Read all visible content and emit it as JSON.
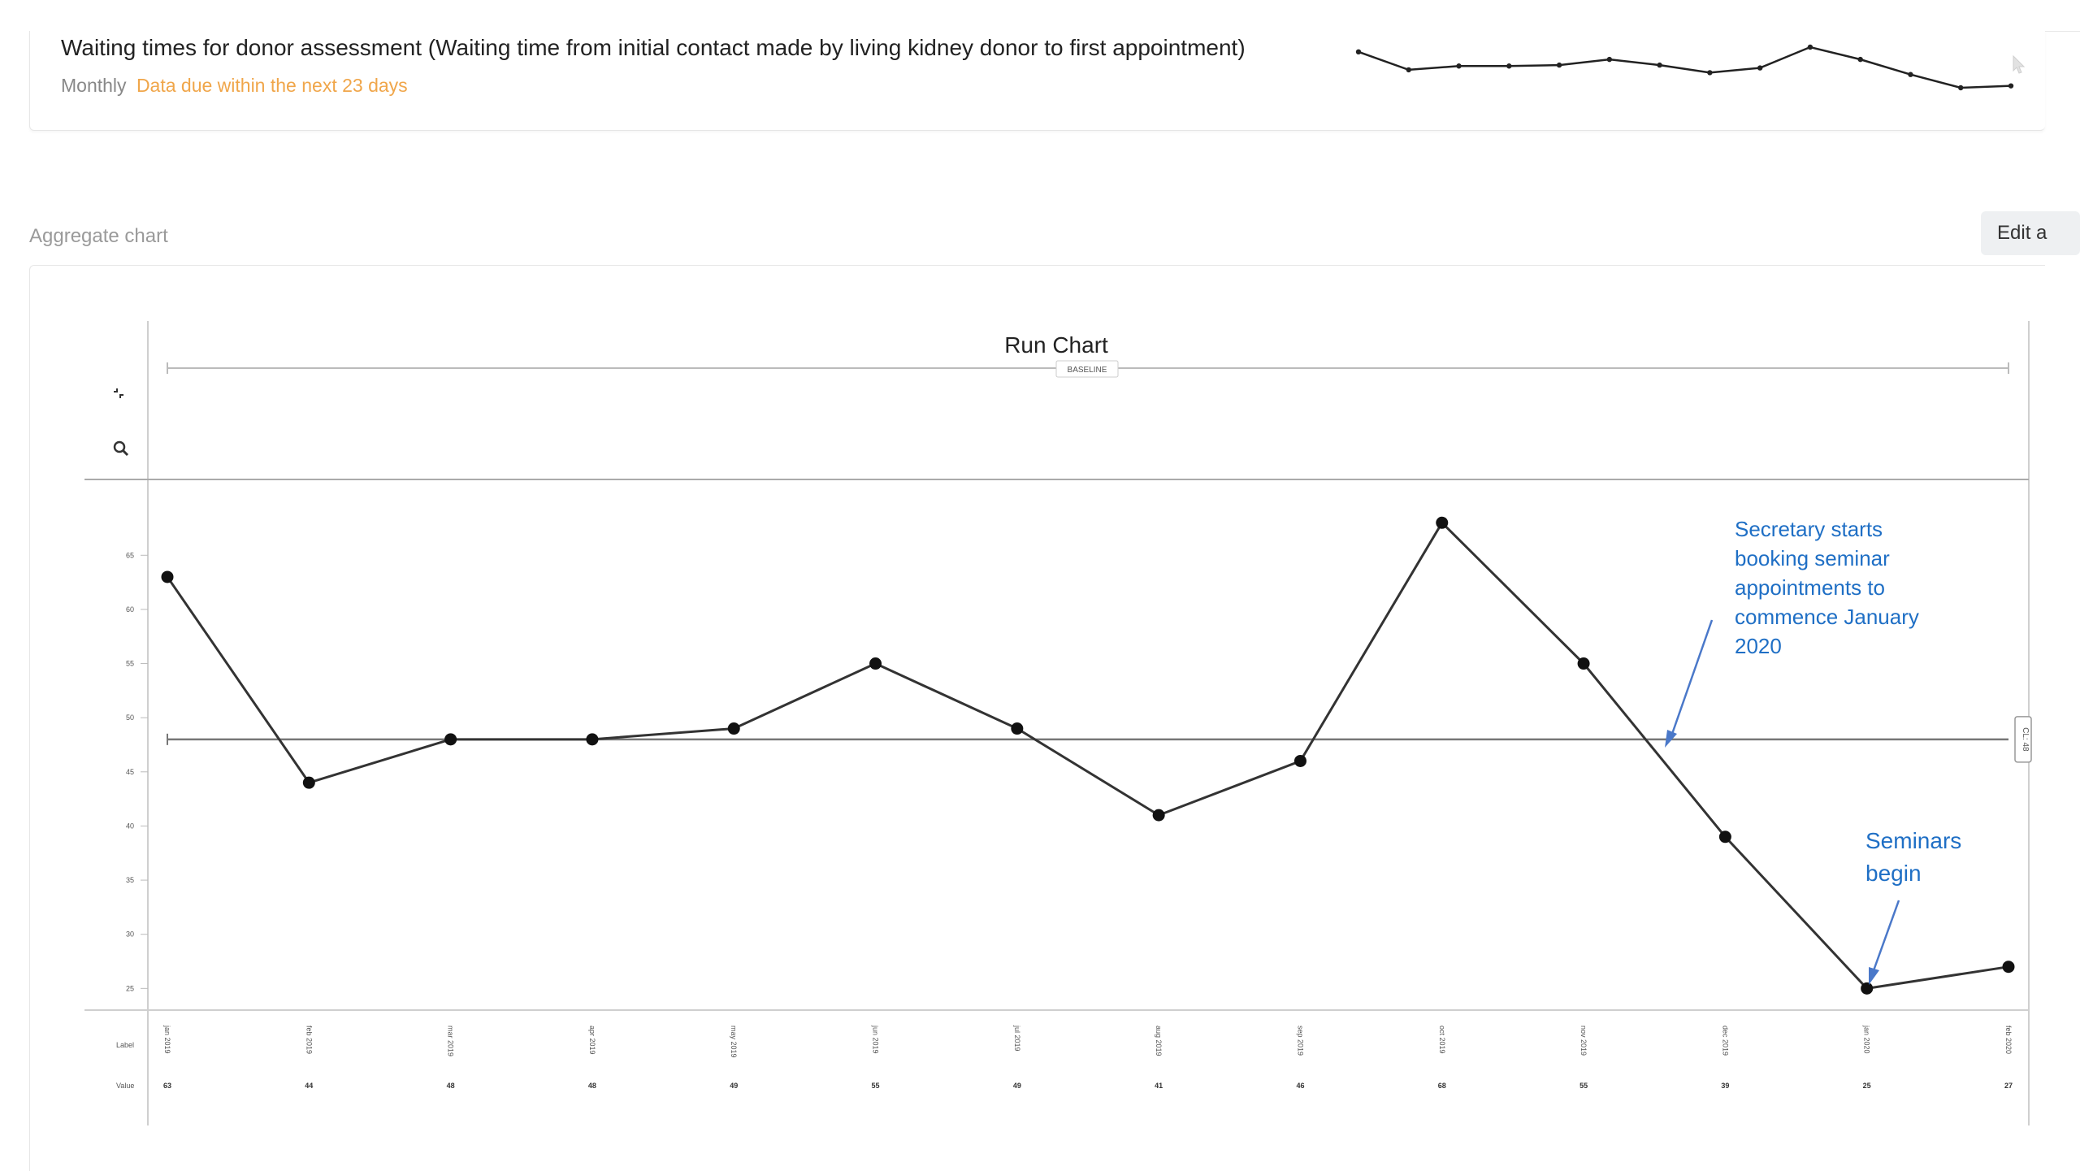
{
  "metric": {
    "title": "Waiting times for donor assessment (Waiting time from initial contact made by living kidney donor to first appointment)",
    "frequency": "Monthly",
    "due_notice": "Data due within the next 23 days",
    "due_color": "#f0a64a"
  },
  "section": {
    "label": "Aggregate chart"
  },
  "edit_button": {
    "label": "Edit a"
  },
  "toolbar": {
    "collapse_icon": "collapse-icon",
    "zoom_icon": "search-icon"
  },
  "chart_data": {
    "type": "line",
    "title": "Run Chart",
    "baseline_label": "BASELINE",
    "centerline_label": "CL: 48",
    "centerline": 48,
    "ylim": [
      23,
      72
    ],
    "yticks": [
      25,
      30,
      35,
      40,
      45,
      50,
      55,
      60,
      65
    ],
    "ytick_labels": [
      "25",
      "30",
      "35",
      "40",
      "45",
      "50",
      "55",
      "60",
      "65"
    ],
    "row_labels": {
      "label": "Label",
      "value": "Value"
    },
    "categories": [
      "jan 2019",
      "feb 2019",
      "mar 2019",
      "apr 2019",
      "may 2019",
      "jun 2019",
      "jul 2019",
      "aug 2019",
      "sep 2019",
      "oct 2019",
      "nov 2019",
      "dec 2019",
      "jan 2020",
      "feb 2020"
    ],
    "values": [
      63,
      44,
      48,
      48,
      49,
      55,
      49,
      41,
      46,
      68,
      55,
      39,
      25,
      27
    ],
    "value_labels": [
      "63",
      "44",
      "48",
      "48",
      "49",
      "55",
      "49",
      "41",
      "46",
      "68",
      "55",
      "39",
      "25",
      "27"
    ],
    "line_color": "#333333",
    "annotations": [
      {
        "lines": [
          "Secretary starts",
          "booking seminar",
          "appointments to",
          "commence January",
          "2020"
        ]
      },
      {
        "lines": [
          "Seminars",
          "begin"
        ]
      }
    ],
    "annotation_color": "#1f6fc5"
  },
  "sparkline": {
    "values": [
      63,
      44,
      48,
      48,
      49,
      55,
      49,
      41,
      46,
      68,
      55,
      39,
      25,
      27
    ]
  }
}
